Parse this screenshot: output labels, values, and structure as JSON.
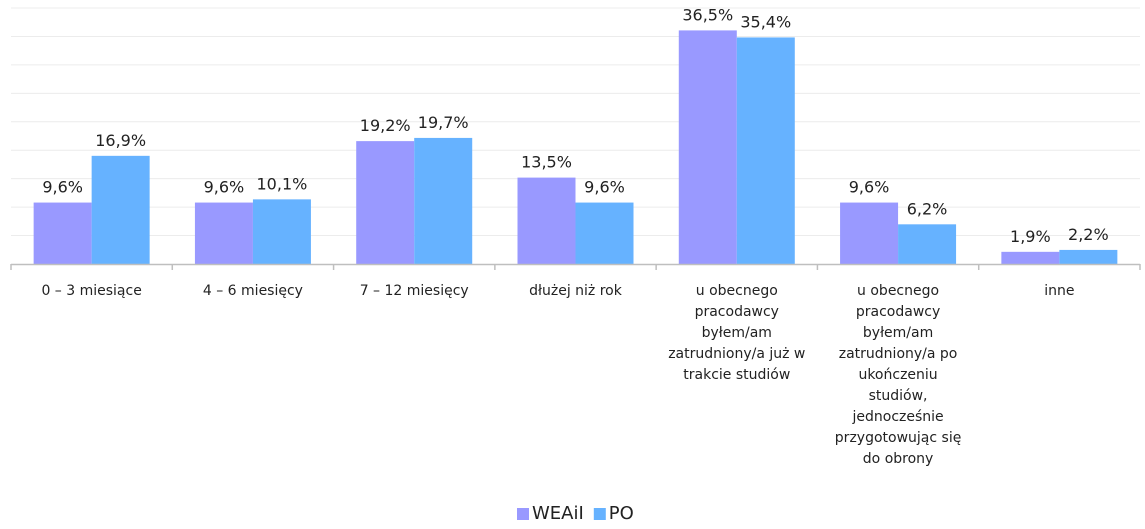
{
  "chart_data": {
    "type": "bar",
    "categories": [
      "0 – 3 miesiące",
      "4 – 6 miesięcy",
      "7 – 12 miesięcy",
      "dłużej niż rok",
      "u obecnego pracodawcy byłem/am zatrudniony/a już w trakcie studiów",
      "u obecnego pracodawcy byłem/am zatrudniony/a po ukończeniu studiów, jednocześnie przygotowując się do obrony",
      "inne"
    ],
    "category_lines": [
      [
        "0 – 3 miesiące"
      ],
      [
        "4 – 6 miesięcy"
      ],
      [
        "7 – 12 miesięcy"
      ],
      [
        "dłużej niż rok"
      ],
      [
        "u obecnego",
        "pracodawcy",
        "byłem/am",
        "zatrudniony/a już w",
        "trakcie studiów"
      ],
      [
        "u obecnego",
        "pracodawcy",
        "byłem/am",
        "zatrudniony/a po",
        "ukończeniu",
        "studiów,",
        "jednocześnie",
        "przygotowując się",
        "do obrony"
      ],
      [
        "inne"
      ]
    ],
    "series": [
      {
        "name": "WEAiI",
        "color": "#9999FF",
        "values": [
          9.6,
          9.6,
          19.2,
          13.5,
          36.5,
          9.6,
          1.9
        ],
        "labels": [
          "9,6%",
          "9,6%",
          "19,2%",
          "13,5%",
          "36,5%",
          "9,6%",
          "1,9%"
        ]
      },
      {
        "name": "PO",
        "color": "#66B2FF",
        "values": [
          16.9,
          10.1,
          19.7,
          9.6,
          35.4,
          6.2,
          2.2
        ],
        "labels": [
          "16,9%",
          "10,1%",
          "19,7%",
          "9,6%",
          "35,4%",
          "6,2%",
          "2,2%"
        ]
      }
    ],
    "ylim": [
      0,
      40
    ],
    "grid": true,
    "legend": "bottom-center",
    "title": "",
    "xlabel": "",
    "ylabel": ""
  }
}
